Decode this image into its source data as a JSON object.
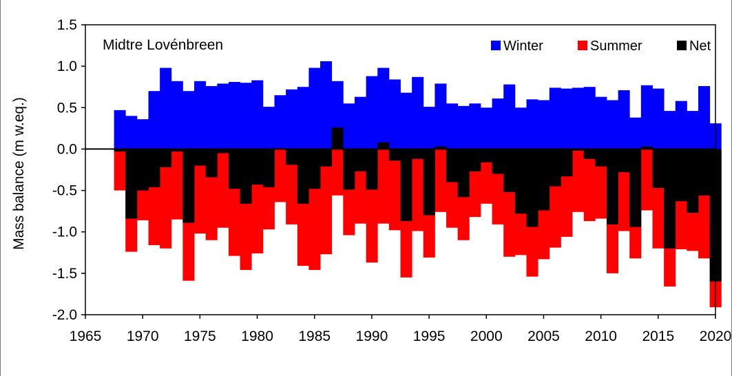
{
  "chart_data": {
    "type": "bar",
    "title": "Midtre Lovénbreen",
    "xlabel": "",
    "ylabel": "Mass balance (m w.eq.)",
    "xlim": [
      1965,
      2020
    ],
    "ylim": [
      -2.0,
      1.5
    ],
    "xticks": [
      "1965",
      "1970",
      "1975",
      "1980",
      "1985",
      "1990",
      "1995",
      "2000",
      "2005",
      "2010",
      "2015",
      "2020"
    ],
    "yticks": [
      "1.5",
      "1.0",
      "0.5",
      "0.0",
      "-0.5",
      "-1.0",
      "-1.5",
      "-2.0"
    ],
    "legend": {
      "placement": "top-right",
      "entries": [
        "Winter",
        "Summer",
        "Net"
      ]
    },
    "colors": {
      "Winter": "#0000ff",
      "Summer": "#ff0000",
      "Net": "#000000"
    },
    "years": [
      1968,
      1969,
      1970,
      1971,
      1972,
      1973,
      1974,
      1975,
      1976,
      1977,
      1978,
      1979,
      1980,
      1981,
      1982,
      1983,
      1984,
      1985,
      1986,
      1987,
      1988,
      1989,
      1990,
      1991,
      1992,
      1993,
      1994,
      1995,
      1996,
      1997,
      1998,
      1999,
      2000,
      2001,
      2002,
      2003,
      2004,
      2005,
      2006,
      2007,
      2008,
      2009,
      2010,
      2011,
      2012,
      2013,
      2014,
      2015,
      2016,
      2017,
      2018,
      2019,
      2020
    ],
    "series": [
      {
        "name": "Winter",
        "values": [
          0.47,
          0.4,
          0.36,
          0.7,
          0.98,
          0.82,
          0.7,
          0.82,
          0.76,
          0.79,
          0.81,
          0.8,
          0.83,
          0.51,
          0.65,
          0.72,
          0.75,
          0.98,
          1.06,
          0.82,
          0.55,
          0.63,
          0.88,
          0.98,
          0.84,
          0.68,
          0.87,
          0.51,
          0.79,
          0.55,
          0.52,
          0.55,
          0.5,
          0.61,
          0.78,
          0.5,
          0.6,
          0.59,
          0.74,
          0.73,
          0.74,
          0.75,
          0.63,
          0.59,
          0.71,
          0.38,
          0.77,
          0.73,
          0.46,
          0.58,
          0.46,
          0.76,
          0.31
        ]
      },
      {
        "name": "Summer",
        "values": [
          -0.5,
          -1.24,
          -0.86,
          -1.16,
          -1.2,
          -0.85,
          -1.59,
          -1.02,
          -1.1,
          -0.95,
          -1.29,
          -1.46,
          -1.26,
          -0.97,
          -0.64,
          -0.91,
          -1.41,
          -1.46,
          -1.27,
          -0.56,
          -1.04,
          -0.9,
          -1.37,
          -0.9,
          -0.98,
          -1.55,
          -0.99,
          -1.31,
          -0.76,
          -0.95,
          -1.1,
          -0.82,
          -0.66,
          -0.91,
          -1.3,
          -1.28,
          -1.54,
          -1.33,
          -1.19,
          -1.06,
          -0.76,
          -0.87,
          -0.84,
          -1.5,
          -0.99,
          -1.32,
          -0.74,
          -1.2,
          -1.66,
          -1.21,
          -1.23,
          -1.32,
          -1.91
        ]
      },
      {
        "name": "Net",
        "values": [
          -0.03,
          -0.84,
          -0.5,
          -0.46,
          -0.22,
          -0.03,
          -0.89,
          -0.2,
          -0.34,
          -0.05,
          -0.48,
          -0.66,
          -0.43,
          -0.46,
          0.01,
          -0.19,
          -0.66,
          -0.48,
          -0.21,
          0.26,
          -0.49,
          -0.27,
          -0.49,
          0.08,
          -0.14,
          -0.87,
          -0.12,
          -0.8,
          0.03,
          -0.4,
          -0.58,
          -0.27,
          -0.16,
          -0.3,
          -0.52,
          -0.78,
          -0.94,
          -0.74,
          -0.45,
          -0.33,
          -0.02,
          -0.12,
          -0.21,
          -0.91,
          -0.28,
          -0.94,
          0.03,
          -0.47,
          -1.2,
          -0.63,
          -0.77,
          -0.56,
          -1.6
        ]
      }
    ]
  }
}
